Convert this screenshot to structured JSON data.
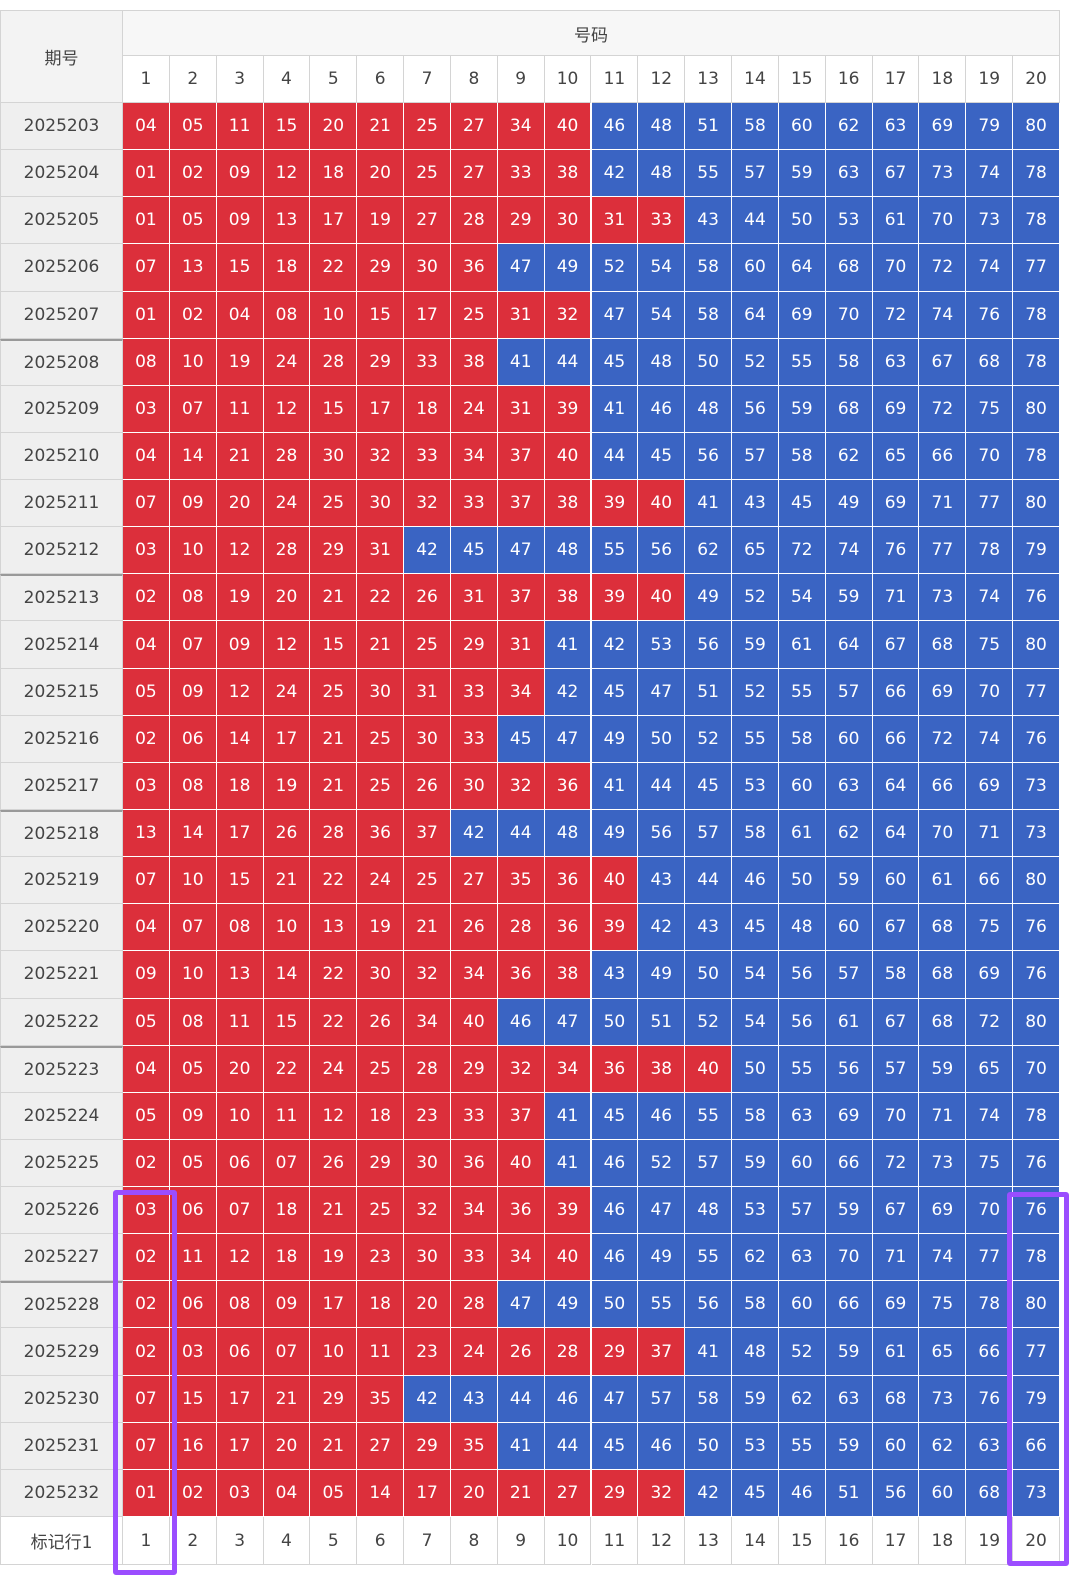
{
  "table": {
    "corner": "期号",
    "group": "号码",
    "columns": [
      "1",
      "2",
      "3",
      "4",
      "5",
      "6",
      "7",
      "8",
      "9",
      "10",
      "11",
      "12",
      "13",
      "14",
      "15",
      "16",
      "17",
      "18",
      "19",
      "20"
    ],
    "low_color": "#dc2f3b",
    "high_color": "#3a64c3",
    "low_max": 40,
    "rows": [
      {
        "id": "2025203",
        "nums": [
          "04",
          "05",
          "11",
          "15",
          "20",
          "21",
          "25",
          "27",
          "34",
          "40",
          "46",
          "48",
          "51",
          "58",
          "60",
          "62",
          "63",
          "69",
          "79",
          "80"
        ]
      },
      {
        "id": "2025204",
        "nums": [
          "01",
          "02",
          "09",
          "12",
          "18",
          "20",
          "25",
          "27",
          "33",
          "38",
          "42",
          "48",
          "55",
          "57",
          "59",
          "63",
          "67",
          "73",
          "74",
          "78"
        ]
      },
      {
        "id": "2025205",
        "nums": [
          "01",
          "05",
          "09",
          "13",
          "17",
          "19",
          "27",
          "28",
          "29",
          "30",
          "31",
          "33",
          "43",
          "44",
          "50",
          "53",
          "61",
          "70",
          "73",
          "78"
        ]
      },
      {
        "id": "2025206",
        "nums": [
          "07",
          "13",
          "15",
          "18",
          "22",
          "29",
          "30",
          "36",
          "47",
          "49",
          "52",
          "54",
          "58",
          "60",
          "64",
          "68",
          "70",
          "72",
          "74",
          "77"
        ]
      },
      {
        "id": "2025207",
        "nums": [
          "01",
          "02",
          "04",
          "08",
          "10",
          "15",
          "17",
          "25",
          "31",
          "32",
          "47",
          "54",
          "58",
          "64",
          "69",
          "70",
          "72",
          "74",
          "76",
          "78"
        ]
      },
      {
        "id": "2025208",
        "nums": [
          "08",
          "10",
          "19",
          "24",
          "28",
          "29",
          "33",
          "38",
          "41",
          "44",
          "45",
          "48",
          "50",
          "52",
          "55",
          "58",
          "63",
          "67",
          "68",
          "78"
        ]
      },
      {
        "id": "2025209",
        "nums": [
          "03",
          "07",
          "11",
          "12",
          "15",
          "17",
          "18",
          "24",
          "31",
          "39",
          "41",
          "46",
          "48",
          "56",
          "59",
          "68",
          "69",
          "72",
          "75",
          "80"
        ]
      },
      {
        "id": "2025210",
        "nums": [
          "04",
          "14",
          "21",
          "28",
          "30",
          "32",
          "33",
          "34",
          "37",
          "40",
          "44",
          "45",
          "56",
          "57",
          "58",
          "62",
          "65",
          "66",
          "70",
          "78"
        ]
      },
      {
        "id": "2025211",
        "nums": [
          "07",
          "09",
          "20",
          "24",
          "25",
          "30",
          "32",
          "33",
          "37",
          "38",
          "39",
          "40",
          "41",
          "43",
          "45",
          "49",
          "69",
          "71",
          "77",
          "80"
        ]
      },
      {
        "id": "2025212",
        "nums": [
          "03",
          "10",
          "12",
          "28",
          "29",
          "31",
          "42",
          "45",
          "47",
          "48",
          "55",
          "56",
          "62",
          "65",
          "72",
          "74",
          "76",
          "77",
          "78",
          "79"
        ]
      },
      {
        "id": "2025213",
        "nums": [
          "02",
          "08",
          "19",
          "20",
          "21",
          "22",
          "26",
          "31",
          "37",
          "38",
          "39",
          "40",
          "49",
          "52",
          "54",
          "59",
          "71",
          "73",
          "74",
          "76"
        ]
      },
      {
        "id": "2025214",
        "nums": [
          "04",
          "07",
          "09",
          "12",
          "15",
          "21",
          "25",
          "29",
          "31",
          "41",
          "42",
          "53",
          "56",
          "59",
          "61",
          "64",
          "67",
          "68",
          "75",
          "80"
        ]
      },
      {
        "id": "2025215",
        "nums": [
          "05",
          "09",
          "12",
          "24",
          "25",
          "30",
          "31",
          "33",
          "34",
          "42",
          "45",
          "47",
          "51",
          "52",
          "55",
          "57",
          "66",
          "69",
          "70",
          "77"
        ]
      },
      {
        "id": "2025216",
        "nums": [
          "02",
          "06",
          "14",
          "17",
          "21",
          "25",
          "30",
          "33",
          "45",
          "47",
          "49",
          "50",
          "52",
          "55",
          "58",
          "60",
          "66",
          "72",
          "74",
          "76"
        ]
      },
      {
        "id": "2025217",
        "nums": [
          "03",
          "08",
          "18",
          "19",
          "21",
          "25",
          "26",
          "30",
          "32",
          "36",
          "41",
          "44",
          "45",
          "53",
          "60",
          "63",
          "64",
          "66",
          "69",
          "73"
        ]
      },
      {
        "id": "2025218",
        "nums": [
          "13",
          "14",
          "17",
          "26",
          "28",
          "36",
          "37",
          "42",
          "44",
          "48",
          "49",
          "56",
          "57",
          "58",
          "61",
          "62",
          "64",
          "70",
          "71",
          "73"
        ]
      },
      {
        "id": "2025219",
        "nums": [
          "07",
          "10",
          "15",
          "21",
          "22",
          "24",
          "25",
          "27",
          "35",
          "36",
          "40",
          "43",
          "44",
          "46",
          "50",
          "59",
          "60",
          "61",
          "66",
          "80"
        ]
      },
      {
        "id": "2025220",
        "nums": [
          "04",
          "07",
          "08",
          "10",
          "13",
          "19",
          "21",
          "26",
          "28",
          "36",
          "39",
          "42",
          "43",
          "45",
          "48",
          "60",
          "67",
          "68",
          "75",
          "76"
        ]
      },
      {
        "id": "2025221",
        "nums": [
          "09",
          "10",
          "13",
          "14",
          "22",
          "30",
          "32",
          "34",
          "36",
          "38",
          "43",
          "49",
          "50",
          "54",
          "56",
          "57",
          "58",
          "68",
          "69",
          "76"
        ]
      },
      {
        "id": "2025222",
        "nums": [
          "05",
          "08",
          "11",
          "15",
          "22",
          "26",
          "34",
          "40",
          "46",
          "47",
          "50",
          "51",
          "52",
          "54",
          "56",
          "61",
          "67",
          "68",
          "72",
          "80"
        ]
      },
      {
        "id": "2025223",
        "nums": [
          "04",
          "05",
          "20",
          "22",
          "24",
          "25",
          "28",
          "29",
          "32",
          "34",
          "36",
          "38",
          "40",
          "50",
          "55",
          "56",
          "57",
          "59",
          "65",
          "70"
        ]
      },
      {
        "id": "2025224",
        "nums": [
          "05",
          "09",
          "10",
          "11",
          "12",
          "18",
          "23",
          "33",
          "37",
          "41",
          "45",
          "46",
          "55",
          "58",
          "63",
          "69",
          "70",
          "71",
          "74",
          "78"
        ]
      },
      {
        "id": "2025225",
        "nums": [
          "02",
          "05",
          "06",
          "07",
          "26",
          "29",
          "30",
          "36",
          "40",
          "41",
          "46",
          "52",
          "57",
          "59",
          "60",
          "66",
          "72",
          "73",
          "75",
          "76"
        ]
      },
      {
        "id": "2025226",
        "nums": [
          "03",
          "06",
          "07",
          "18",
          "21",
          "25",
          "32",
          "34",
          "36",
          "39",
          "46",
          "47",
          "48",
          "53",
          "57",
          "59",
          "67",
          "69",
          "70",
          "76"
        ]
      },
      {
        "id": "2025227",
        "nums": [
          "02",
          "11",
          "12",
          "18",
          "19",
          "23",
          "30",
          "33",
          "34",
          "40",
          "46",
          "49",
          "55",
          "62",
          "63",
          "70",
          "71",
          "74",
          "77",
          "78"
        ]
      },
      {
        "id": "2025228",
        "nums": [
          "02",
          "06",
          "08",
          "09",
          "17",
          "18",
          "20",
          "28",
          "47",
          "49",
          "50",
          "55",
          "56",
          "58",
          "60",
          "66",
          "69",
          "75",
          "78",
          "80"
        ]
      },
      {
        "id": "2025229",
        "nums": [
          "02",
          "03",
          "06",
          "07",
          "10",
          "11",
          "23",
          "24",
          "26",
          "28",
          "29",
          "37",
          "41",
          "48",
          "52",
          "59",
          "61",
          "65",
          "66",
          "77"
        ]
      },
      {
        "id": "2025230",
        "nums": [
          "07",
          "15",
          "17",
          "21",
          "29",
          "35",
          "42",
          "43",
          "44",
          "46",
          "47",
          "57",
          "58",
          "59",
          "62",
          "63",
          "68",
          "73",
          "76",
          "79"
        ]
      },
      {
        "id": "2025231",
        "nums": [
          "07",
          "16",
          "17",
          "20",
          "21",
          "27",
          "29",
          "35",
          "41",
          "44",
          "45",
          "46",
          "50",
          "53",
          "55",
          "59",
          "60",
          "62",
          "63",
          "66"
        ]
      },
      {
        "id": "2025232",
        "nums": [
          "01",
          "02",
          "03",
          "04",
          "05",
          "14",
          "17",
          "20",
          "21",
          "27",
          "29",
          "32",
          "42",
          "45",
          "46",
          "51",
          "56",
          "60",
          "68",
          "73"
        ]
      }
    ],
    "footer": {
      "label": "标记行1",
      "cells": [
        "1",
        "2",
        "3",
        "4",
        "5",
        "6",
        "7",
        "8",
        "9",
        "10",
        "11",
        "12",
        "13",
        "14",
        "15",
        "16",
        "17",
        "18",
        "19",
        "20"
      ]
    }
  }
}
